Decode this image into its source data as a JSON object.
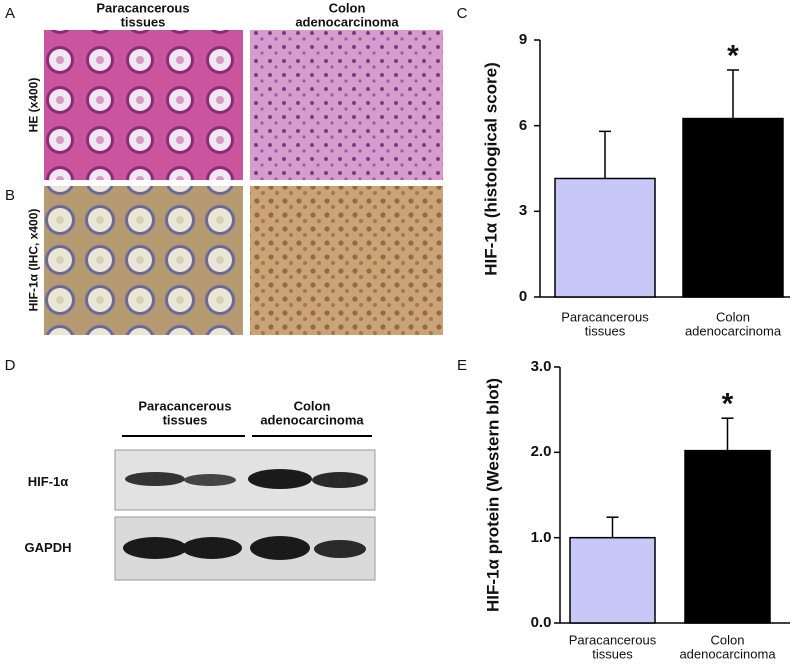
{
  "panel_labels": [
    "A",
    "B",
    "C",
    "D",
    "E"
  ],
  "histology": {
    "columns": [
      "Paracancerous tissues",
      "Colon adenocarcinoma"
    ],
    "rows": [
      "HE (x400)",
      "HIF-1α (IHC, x400)"
    ]
  },
  "western_blot": {
    "groups": [
      "Paracancerous tissues",
      "Colon adenocarcinoma"
    ],
    "bands": [
      "HIF-1α",
      "GAPDH"
    ]
  },
  "chart_data": [
    {
      "type": "bar",
      "y_label": "HIF-1α (histological score)",
      "categories": [
        "Paracancerous tissues",
        "Colon adenocarcinoma"
      ],
      "values": [
        4.15,
        6.25
      ],
      "errors": [
        1.65,
        1.7
      ],
      "colors": [
        "#c8c8f8",
        "#000000"
      ],
      "annotation": "*",
      "ylim": [
        0,
        9
      ],
      "yticks": [
        0,
        3,
        6,
        9
      ]
    },
    {
      "type": "bar",
      "y_label": "HIF-1α protein (Western blot)",
      "categories": [
        "Paracancerous tissues",
        "Colon adenocarcinoma"
      ],
      "values": [
        1.0,
        2.02
      ],
      "errors": [
        0.24,
        0.38
      ],
      "colors": [
        "#c8c8f8",
        "#000000"
      ],
      "annotation": "*",
      "ylim": [
        0,
        3
      ],
      "yticks": [
        {
          "value": 0,
          "label": "0.0"
        },
        {
          "value": 1,
          "label": "1.0"
        },
        {
          "value": 2,
          "label": "2.0"
        },
        {
          "value": 3,
          "label": "3.0"
        }
      ]
    }
  ]
}
